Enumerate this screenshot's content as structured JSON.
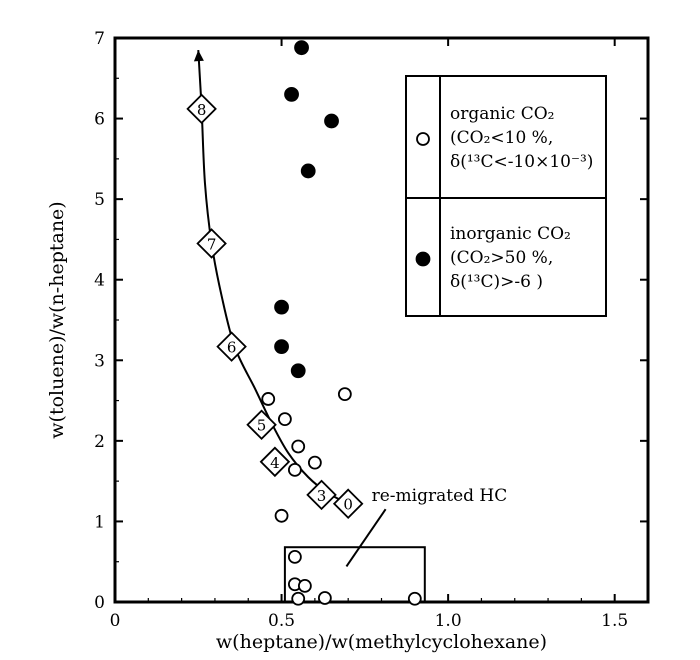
{
  "chart_data": {
    "type": "scatter",
    "title": "",
    "xlabel": "w(heptane)/w(methylcyclohexane)",
    "ylabel": "w(toluene)/w(n-heptane)",
    "xlim": [
      0,
      1.6
    ],
    "ylim": [
      0,
      7
    ],
    "x_ticks": [
      0,
      0.5,
      1.0,
      1.5
    ],
    "x_tick_labels": [
      "0",
      "0.5",
      "1.0",
      "1.5"
    ],
    "y_ticks": [
      0,
      1,
      2,
      3,
      4,
      5,
      6,
      7
    ],
    "y_tick_labels": [
      "0",
      "1",
      "2",
      "3",
      "4",
      "5",
      "6",
      "7"
    ],
    "grid": false,
    "legend_position": "top-right",
    "legend": [
      {
        "marker": "open-circle",
        "lines": [
          "organic CO₂",
          "(CO₂<10 %,",
          "δ(¹³C<-10×10⁻³)"
        ]
      },
      {
        "marker": "filled-circle",
        "lines": [
          "inorganic CO₂",
          "(CO₂>50 %,",
          "δ(¹³C)>-6 )"
        ]
      }
    ],
    "series": [
      {
        "name": "organic CO₂",
        "marker": "open-circle",
        "points": [
          [
            0.46,
            2.52
          ],
          [
            0.51,
            2.27
          ],
          [
            0.69,
            2.58
          ],
          [
            0.55,
            1.93
          ],
          [
            0.6,
            1.73
          ],
          [
            0.54,
            1.64
          ],
          [
            0.5,
            1.07
          ],
          [
            0.54,
            0.56
          ],
          [
            0.54,
            0.22
          ],
          [
            0.57,
            0.2
          ],
          [
            0.55,
            0.04
          ],
          [
            0.63,
            0.05
          ],
          [
            0.9,
            0.04
          ]
        ]
      },
      {
        "name": "inorganic CO₂",
        "marker": "filled-circle",
        "points": [
          [
            0.56,
            6.88
          ],
          [
            0.53,
            6.3
          ],
          [
            0.65,
            5.97
          ],
          [
            0.58,
            5.35
          ],
          [
            0.5,
            3.66
          ],
          [
            0.5,
            3.17
          ],
          [
            0.55,
            2.87
          ]
        ]
      }
    ],
    "trend_curve": {
      "points": [
        [
          0.7,
          1.22
        ],
        [
          0.64,
          1.35
        ],
        [
          0.58,
          1.55
        ],
        [
          0.52,
          1.85
        ],
        [
          0.47,
          2.22
        ],
        [
          0.42,
          2.65
        ],
        [
          0.36,
          3.16
        ],
        [
          0.32,
          3.8
        ],
        [
          0.29,
          4.45
        ],
        [
          0.27,
          5.2
        ],
        [
          0.26,
          6.12
        ],
        [
          0.25,
          6.85
        ]
      ],
      "markers": [
        {
          "label": "0",
          "x": 0.7,
          "y": 1.22
        },
        {
          "label": "3",
          "x": 0.62,
          "y": 1.33
        },
        {
          "label": "4",
          "x": 0.48,
          "y": 1.74
        },
        {
          "label": "5",
          "x": 0.44,
          "y": 2.2
        },
        {
          "label": "6",
          "x": 0.35,
          "y": 3.17
        },
        {
          "label": "7",
          "x": 0.29,
          "y": 4.45
        },
        {
          "label": "8",
          "x": 0.26,
          "y": 6.12
        }
      ]
    },
    "region": {
      "label": "re-migrated HC",
      "x_range": [
        0.51,
        0.93
      ],
      "y_range": [
        0,
        0.68
      ]
    }
  }
}
